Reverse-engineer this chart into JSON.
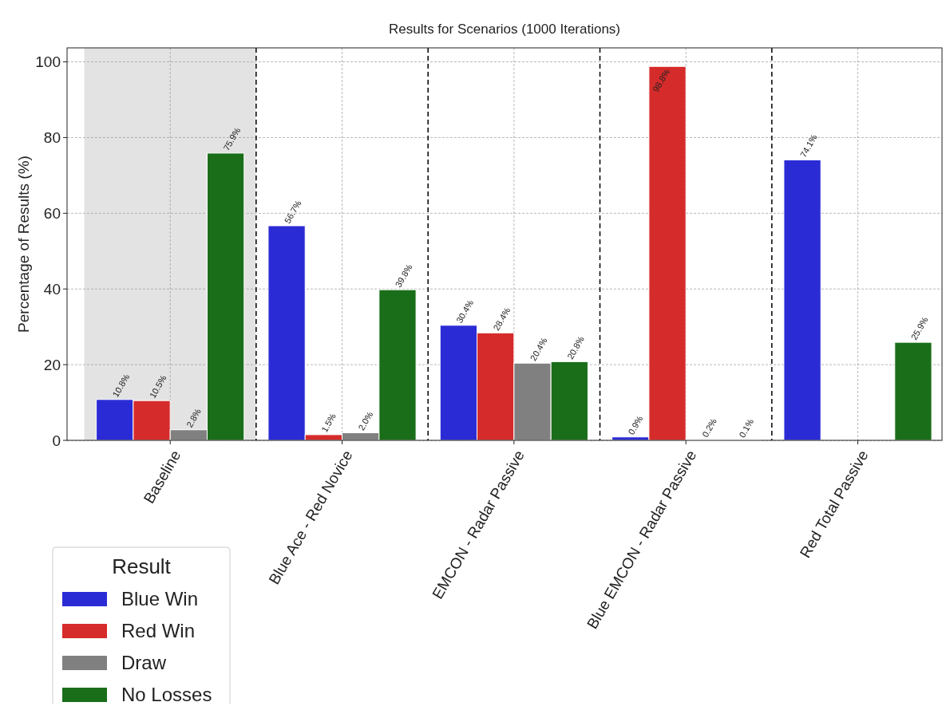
{
  "chart_data": {
    "type": "bar",
    "title": "Results for Scenarios (1000 Iterations)",
    "ylabel": "Percentage of Results (%)",
    "categories": [
      "Baseline",
      "Blue Ace - Red Novice",
      "EMCON - Radar Passive",
      "Blue EMCON - Radar Passive",
      "Red Total Passive"
    ],
    "series": [
      {
        "name": "Blue Win",
        "color": "#2b2bd6",
        "values": [
          10.8,
          56.7,
          30.4,
          0.9,
          74.1
        ],
        "value_labels": [
          "10.8%",
          "56.7%",
          "30.4%",
          "0.9%",
          "74.1%"
        ]
      },
      {
        "name": "Red Win",
        "color": "#d62b2b",
        "values": [
          10.5,
          1.5,
          28.4,
          98.8,
          null
        ],
        "value_labels": [
          "10.5%",
          "1.5%",
          "28.4%",
          "98.8%",
          null
        ]
      },
      {
        "name": "Draw",
        "color": "#808080",
        "values": [
          2.8,
          2.0,
          20.4,
          0.2,
          null
        ],
        "value_labels": [
          "2.8%",
          "2.0%",
          "20.4%",
          "0.2%",
          null
        ]
      },
      {
        "name": "No Losses",
        "color": "#1a6e1a",
        "values": [
          75.9,
          39.8,
          20.8,
          0.1,
          25.9
        ],
        "value_labels": [
          "75.9%",
          "39.8%",
          "20.8%",
          "0.1%",
          "25.9%"
        ]
      }
    ],
    "ylim": [
      0,
      103.7
    ],
    "yticks": [
      0,
      20,
      40,
      60,
      80,
      100
    ],
    "grid": true,
    "legend": "bottom left",
    "legend_title": "Result",
    "bands": [
      {
        "axis": "x",
        "from": "Baseline",
        "to": "Baseline",
        "color": "#e3e3e3"
      }
    ]
  }
}
